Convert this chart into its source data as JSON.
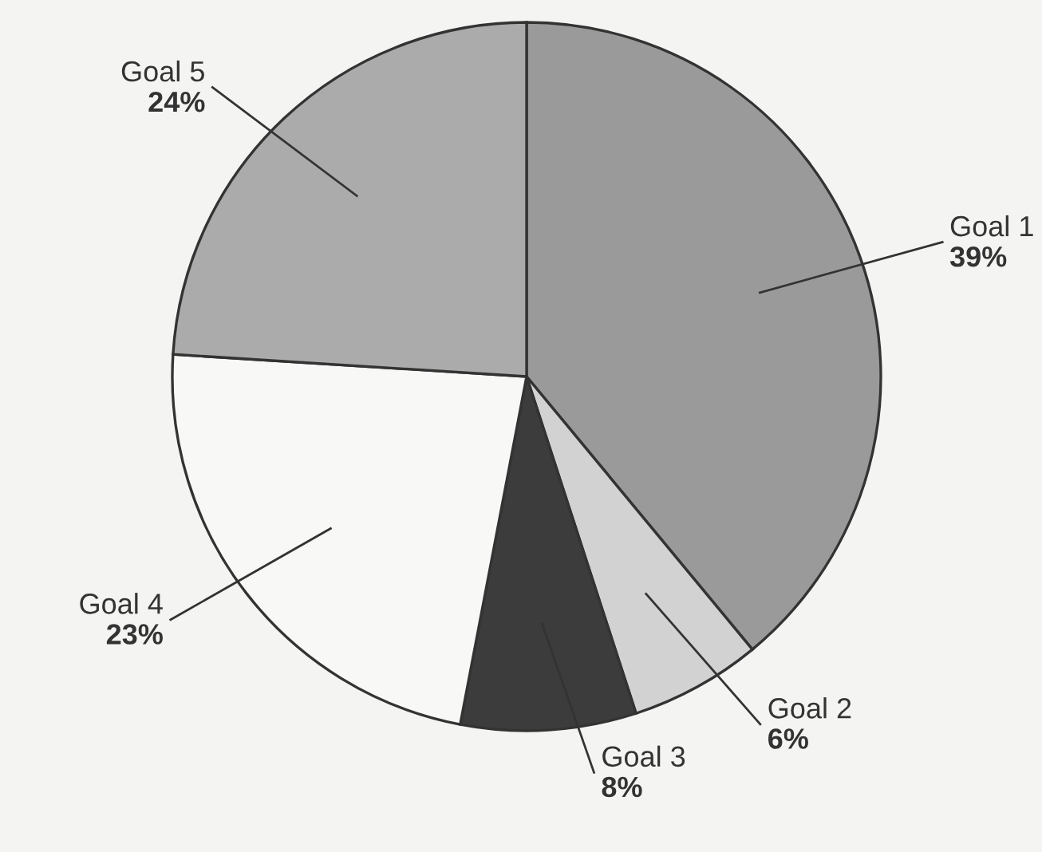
{
  "chart_data": {
    "type": "pie",
    "categories": [
      "Goal 1",
      "Goal 2",
      "Goal 3",
      "Goal 4",
      "Goal 5"
    ],
    "values": [
      39,
      6,
      8,
      23,
      24
    ],
    "value_labels": [
      "39%",
      "6%",
      "8%",
      "23%",
      "24%"
    ],
    "colors": [
      "#9a9a9a",
      "#d2d2d2",
      "#3c3c3c",
      "#f8f8f6",
      "#ababab"
    ]
  }
}
